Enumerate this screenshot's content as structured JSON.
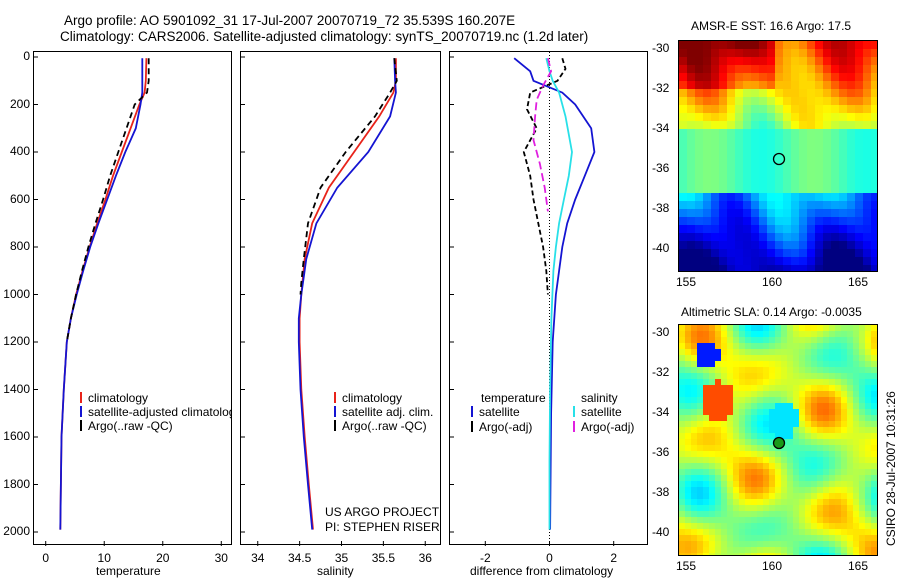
{
  "header": {
    "line1": "Argo profile: AO 5901092_31 17-Jul-2007 20070719_72 35.539S 160.207E",
    "line2": "Climatology: CARS2006. Satellite-adjusted climatology: synTS_20070719.nc (1.2d later)"
  },
  "colors": {
    "climatology": "#e8231a",
    "satellite": "#1414d2",
    "argo": "#000000",
    "sat_salinity": "#28e0e8",
    "argo_salinity": "#e020e0"
  },
  "chart_data": [
    {
      "type": "line",
      "name": "temperature-panel",
      "xlabel": "temperature",
      "ylabel": "",
      "xlim": [
        -2,
        32
      ],
      "ylim": [
        2050,
        0
      ],
      "xticks": [
        0,
        10,
        20,
        30
      ],
      "yticks": [
        0,
        200,
        400,
        600,
        800,
        1000,
        1200,
        1400,
        1600,
        1800,
        2000
      ],
      "legend": [
        "climatology",
        "satellite-adjusted climatology",
        "Argo(..raw -QC)"
      ],
      "series": [
        {
          "name": "climatology",
          "color": "#e8231a",
          "dash": "",
          "x": [
            17.2,
            17.1,
            16.9,
            16.0,
            14.5,
            13.0,
            11.5,
            10.2,
            8.8,
            7.5,
            6.3,
            5.2,
            4.3,
            3.6,
            3.1,
            2.7,
            2.5
          ],
          "y": [
            5,
            100,
            150,
            200,
            300,
            400,
            500,
            600,
            700,
            800,
            900,
            1000,
            1100,
            1200,
            1400,
            1600,
            1990
          ]
        },
        {
          "name": "satellite-adjusted climatology",
          "color": "#1414d2",
          "dash": "",
          "x": [
            16.5,
            16.5,
            16.5,
            16.2,
            15.4,
            13.6,
            12.0,
            10.5,
            9.0,
            7.6,
            6.4,
            5.3,
            4.3,
            3.6,
            3.1,
            2.7,
            2.5
          ],
          "y": [
            5,
            100,
            150,
            200,
            300,
            400,
            500,
            600,
            700,
            800,
            900,
            1000,
            1100,
            1200,
            1400,
            1600,
            1990
          ]
        },
        {
          "name": "Argo(..raw -QC)",
          "color": "#000000",
          "dash": "6,4",
          "x": [
            17.6,
            17.6,
            17.3,
            15.2,
            13.8,
            12.4,
            11.0,
            9.8,
            8.5,
            7.3,
            6.2,
            5.2,
            4.3,
            3.6
          ],
          "y": [
            5,
            100,
            150,
            200,
            300,
            400,
            500,
            600,
            700,
            800,
            900,
            1000,
            1100,
            1200
          ]
        }
      ]
    },
    {
      "type": "line",
      "name": "salinity-panel",
      "xlabel": "salinity",
      "ylabel": "",
      "xlim": [
        33.8,
        36.2
      ],
      "ylim": [
        2050,
        0
      ],
      "xticks": [
        34,
        34.5,
        35,
        35.5,
        36
      ],
      "legend": [
        "climatology",
        "satellite adj. clim.",
        "Argo(..raw -QC)"
      ],
      "annotation": [
        "US ARGO PROJECT",
        "PI: STEPHEN RISER"
      ],
      "series": [
        {
          "name": "climatology",
          "color": "#e8231a",
          "dash": "",
          "x": [
            35.65,
            35.65,
            35.62,
            35.45,
            35.15,
            34.85,
            34.65,
            34.56,
            34.52,
            34.5,
            34.5,
            34.52,
            34.56,
            34.61,
            34.66
          ],
          "y": [
            5,
            100,
            150,
            250,
            400,
            550,
            700,
            850,
            1000,
            1100,
            1200,
            1400,
            1600,
            1800,
            1990
          ]
        },
        {
          "name": "satellite adj. clim.",
          "color": "#1414d2",
          "dash": "",
          "x": [
            35.63,
            35.64,
            35.65,
            35.58,
            35.32,
            34.95,
            34.7,
            34.58,
            34.52,
            34.49,
            34.49,
            34.51,
            34.55,
            34.6,
            34.65
          ],
          "y": [
            5,
            100,
            150,
            250,
            400,
            550,
            700,
            850,
            1000,
            1100,
            1200,
            1400,
            1600,
            1800,
            1990
          ]
        },
        {
          "name": "Argo(..raw -QC)",
          "color": "#000000",
          "dash": "6,4",
          "x": [
            35.63,
            35.66,
            35.58,
            35.4,
            35.05,
            34.75,
            34.6,
            34.55,
            34.52,
            34.51
          ],
          "y": [
            5,
            100,
            150,
            250,
            400,
            550,
            700,
            850,
            950,
            1000
          ]
        }
      ]
    },
    {
      "type": "line",
      "name": "difference-panel",
      "xlabel": "difference from climatology",
      "ylabel": "",
      "xlim": [
        -3.1,
        3.1
      ],
      "ylim": [
        2050,
        0
      ],
      "xticks": [
        -2,
        0,
        2
      ],
      "legend_titles": [
        "temperature",
        "salinity"
      ],
      "legend": [
        "satellite",
        "Argo(-adj)",
        "satellite",
        "Argo(-adj)"
      ],
      "series": [
        {
          "name": "satellite",
          "group": "temperature",
          "color": "#1414d2",
          "dash": "",
          "x": [
            -1.1,
            -0.6,
            -0.5,
            0.4,
            0.8,
            1.3,
            1.4,
            1.1,
            0.8,
            0.55,
            0.4,
            0.3,
            0.2,
            0.1,
            0.05,
            0.02
          ],
          "y": [
            5,
            60,
            100,
            150,
            200,
            300,
            400,
            500,
            600,
            700,
            800,
            900,
            1000,
            1200,
            1500,
            1990
          ]
        },
        {
          "name": "Argo(-adj)",
          "group": "temperature",
          "color": "#000000",
          "dash": "5,3",
          "x": [
            0.4,
            0.5,
            0.25,
            -0.6,
            -0.7,
            -0.4,
            -0.8,
            -0.6,
            -0.5,
            -0.35,
            -0.2,
            -0.1,
            -0.05
          ],
          "y": [
            5,
            50,
            100,
            150,
            220,
            300,
            400,
            500,
            600,
            700,
            800,
            900,
            1000
          ]
        },
        {
          "name": "satellite",
          "group": "salinity",
          "color": "#28e0e8",
          "dash": "",
          "x": [
            -0.1,
            0.0,
            0.1,
            0.3,
            0.5,
            0.7,
            0.6,
            0.45,
            0.3,
            0.2,
            0.12,
            0.06,
            0.02,
            0.0,
            0.0
          ],
          "y": [
            5,
            60,
            100,
            150,
            250,
            400,
            500,
            600,
            700,
            800,
            900,
            1100,
            1400,
            1700,
            1990
          ]
        },
        {
          "name": "Argo(-adj)",
          "group": "salinity",
          "color": "#e020e0",
          "dash": "8,4",
          "x": [
            -0.05,
            0.05,
            -0.2,
            -0.4,
            -0.45,
            -0.5,
            -0.3,
            -0.15,
            -0.05
          ],
          "y": [
            5,
            60,
            120,
            180,
            250,
            350,
            450,
            550,
            650
          ]
        }
      ]
    }
  ],
  "maps": [
    {
      "name": "sst-map",
      "title": "AMSR-E SST: 16.6 Argo: 17.5",
      "xticks": [
        "155",
        "160",
        "165"
      ],
      "yticks": [
        "-30",
        "-32",
        "-34",
        "-36",
        "-38",
        "-40"
      ]
    },
    {
      "name": "sla-map",
      "title": "Altimetric SLA: 0.14 Argo: -0.0035",
      "xticks": [
        "155",
        "160",
        "165"
      ],
      "yticks": [
        "-30",
        "-32",
        "-34",
        "-36",
        "-38",
        "-40"
      ]
    }
  ],
  "side_caption": "CSIRO 28-Jul-2007 10:31:26"
}
